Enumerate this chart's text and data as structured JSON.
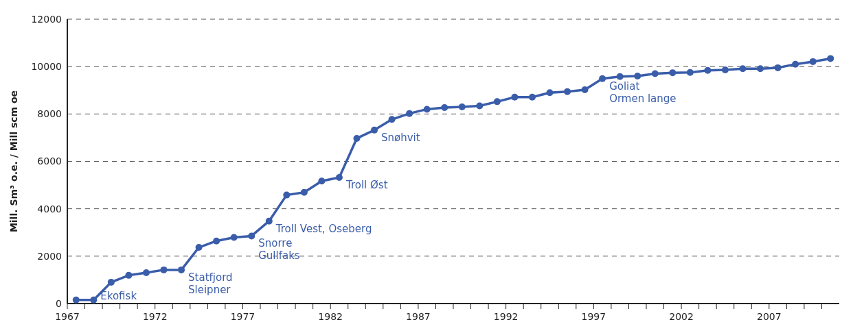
{
  "chart_data": {
    "type": "line",
    "ylabel": "Mill. Sm³ o.e. / Mill scm oe",
    "x": [
      1967.5,
      1968.5,
      1969.5,
      1970.5,
      1971.5,
      1972.5,
      1973.5,
      1974.5,
      1975.5,
      1976.5,
      1977.5,
      1978.5,
      1979.5,
      1980.5,
      1981.5,
      1982.5,
      1983.5,
      1984.5,
      1985.5,
      1986.5,
      1987.5,
      1988.5,
      1989.5,
      1990.5,
      1991.5,
      1992.5,
      1993.5,
      1994.5,
      1995.5,
      1996.5,
      1997.5,
      1998.5,
      1999.5,
      2000.5,
      2001.5,
      2002.5,
      2003.5,
      2004.5,
      2005.5,
      2006.5,
      2007.5,
      2008.5,
      2009.5,
      2010.5
    ],
    "series": [
      {
        "color": "#3a5daa",
        "values": [
          150,
          150,
          900,
          1190,
          1300,
          1420,
          1420,
          2370,
          2640,
          2790,
          2850,
          3480,
          4580,
          4690,
          5170,
          5320,
          6970,
          7320,
          7770,
          8020,
          8200,
          8270,
          8300,
          8340,
          8520,
          8710,
          8710,
          8900,
          8940,
          9020,
          9490,
          9580,
          9600,
          9700,
          9740,
          9750,
          9840,
          9860,
          9910,
          9910,
          9950,
          10100,
          10210,
          10340
        ]
      }
    ],
    "xlim": [
      1967,
      2011
    ],
    "xticks": [
      1967,
      {
        "value": 1968,
        "label": null
      },
      {
        "value": 1969,
        "label": null
      },
      {
        "value": 1970,
        "label": null
      },
      {
        "value": 1971,
        "label": null
      },
      1972,
      {
        "value": 1973,
        "label": null
      },
      {
        "value": 1974,
        "label": null
      },
      {
        "value": 1975,
        "label": null
      },
      {
        "value": 1976,
        "label": null
      },
      1977,
      {
        "value": 1978,
        "label": null
      },
      {
        "value": 1979,
        "label": null
      },
      {
        "value": 1980,
        "label": null
      },
      {
        "value": 1981,
        "label": null
      },
      1982,
      {
        "value": 1983,
        "label": null
      },
      {
        "value": 1984,
        "label": null
      },
      {
        "value": 1985,
        "label": null
      },
      {
        "value": 1986,
        "label": null
      },
      1987,
      {
        "value": 1988,
        "label": null
      },
      {
        "value": 1989,
        "label": null
      },
      {
        "value": 1990,
        "label": null
      },
      {
        "value": 1991,
        "label": null
      },
      1992,
      {
        "value": 1993,
        "label": null
      },
      {
        "value": 1994,
        "label": null
      },
      {
        "value": 1995,
        "label": null
      },
      {
        "value": 1996,
        "label": null
      },
      1997,
      {
        "value": 1998,
        "label": null
      },
      {
        "value": 1999,
        "label": null
      },
      {
        "value": 2000,
        "label": null
      },
      {
        "value": 2001,
        "label": null
      },
      2002,
      {
        "value": 2003,
        "label": null
      },
      {
        "value": 2004,
        "label": null
      },
      {
        "value": 2005,
        "label": null
      },
      {
        "value": 2006,
        "label": null
      },
      2007,
      {
        "value": 2008,
        "label": null
      },
      {
        "value": 2009,
        "label": null
      },
      {
        "value": 2010,
        "label": null
      }
    ],
    "ylim": [
      0,
      12000
    ],
    "yticks": [
      0,
      2000,
      4000,
      6000,
      8000,
      10000,
      12000
    ],
    "grid": "y",
    "marker": "circle",
    "line_style": "solid",
    "annotations": [
      {
        "text": "Ekofisk",
        "x": 1968.5,
        "y": 150
      },
      {
        "text": "Statfjord\nSleipner",
        "x": 1973.5,
        "y": 1420
      },
      {
        "text": "Snorre\nGullfaks",
        "x": 1977.5,
        "y": 2850
      },
      {
        "text": "Troll Vest, Oseberg",
        "x": 1978.5,
        "y": 3480
      },
      {
        "text": "Troll Øst",
        "x": 1982.5,
        "y": 5320
      },
      {
        "text": "Snøhvit",
        "x": 1984.5,
        "y": 7320
      },
      {
        "text": "Goliat\nOrmen lange",
        "x": 1997.5,
        "y": 9490
      }
    ]
  }
}
